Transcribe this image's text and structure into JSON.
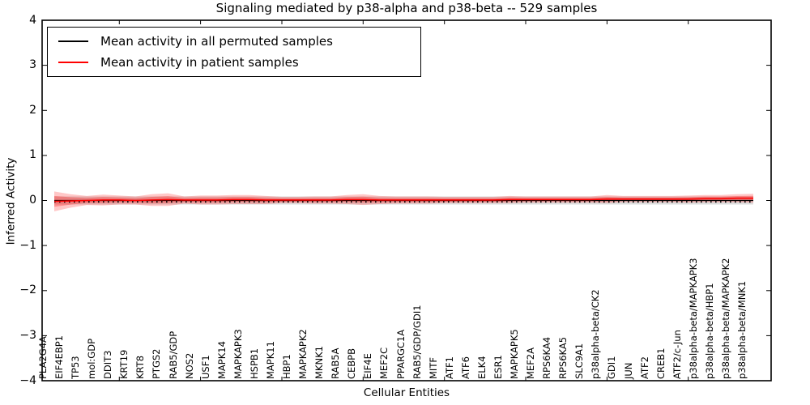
{
  "header": {
    "title": "Signaling mediated by p38-alpha and p38-beta -- 529 samples"
  },
  "legend": {
    "items": [
      {
        "label": "Mean activity in all permuted samples",
        "color": "#000000"
      },
      {
        "label": "Mean activity in patient samples",
        "color": "#ff0000"
      }
    ]
  },
  "axes": {
    "xlabel": "Cellular Entities",
    "ylabel": "Inferred Activity"
  },
  "chart_data": {
    "type": "line",
    "title": "Signaling mediated by p38-alpha and p38-beta -- 529 samples",
    "xlabel": "Cellular Entities",
    "ylabel": "Inferred Activity",
    "ylim": [
      -4,
      4
    ],
    "yticks": [
      -4,
      -3,
      -2,
      -1,
      0,
      1,
      2,
      3,
      4
    ],
    "grid": false,
    "legend_position": "upper left",
    "background": "#ffffff",
    "categories": [
      "PLA2G4A",
      "EIF4EBP1",
      "TP53",
      "mol:GDP",
      "DDIT3",
      "KRT19",
      "KRT8",
      "PTGS2",
      "RAB5/GDP",
      "NOS2",
      "USF1",
      "MAPK14",
      "MAPKAPK3",
      "HSPB1",
      "MAPK11",
      "HBP1",
      "MAPKAPK2",
      "MKNK1",
      "RAB5A",
      "CEBPB",
      "EIF4E",
      "MEF2C",
      "PPARGC1A",
      "RAB5/GDP/GDI1",
      "MITF",
      "ATF1",
      "ATF6",
      "ELK4",
      "ESR1",
      "MAPKAPK5",
      "MEF2A",
      "RPS6KA4",
      "RPS6KA5",
      "SLC9A1",
      "p38alpha-beta/CK2",
      "GDI1",
      "JUN",
      "ATF2",
      "CREB1",
      "ATF2/c-Jun",
      "p38alpha-beta/MAPKAPK3",
      "p38alpha-beta/HBP1",
      "p38alpha-beta/MAPKAPK2",
      "p38alpha-beta/MNK1"
    ],
    "series": [
      {
        "name": "Mean activity in all permuted samples",
        "color": "#000000",
        "style": "solid",
        "values": [
          0,
          0,
          0,
          0,
          0,
          0,
          0,
          0,
          0,
          0,
          0,
          0,
          0,
          0,
          0,
          0,
          0,
          0,
          0,
          0,
          0,
          0,
          0,
          0,
          0,
          0,
          0,
          0,
          0,
          0,
          0,
          0,
          0,
          0,
          0,
          0,
          0,
          0,
          0,
          0,
          0,
          0,
          0,
          0
        ],
        "band_halfwidth": [
          0.09,
          0.09,
          0.09,
          0.09,
          0.09,
          0.09,
          0.09,
          0.09,
          0.09,
          0.09,
          0.09,
          0.09,
          0.09,
          0.09,
          0.09,
          0.09,
          0.09,
          0.09,
          0.09,
          0.09,
          0.09,
          0.09,
          0.09,
          0.09,
          0.09,
          0.09,
          0.09,
          0.09,
          0.09,
          0.09,
          0.09,
          0.09,
          0.09,
          0.09,
          0.09,
          0.09,
          0.09,
          0.09,
          0.09,
          0.09,
          0.09,
          0.09,
          0.09,
          0.09
        ],
        "band_color": "rgba(0,0,0,0.13)"
      },
      {
        "name": "Mean activity in patient samples",
        "color": "#ff0000",
        "style": "solid",
        "values": [
          -0.02,
          -0.01,
          0,
          0.01,
          0.01,
          0,
          0.01,
          0.02,
          0.01,
          0.01,
          0.01,
          0.02,
          0.02,
          0.01,
          0.01,
          0.01,
          0.01,
          0.01,
          0.02,
          0.02,
          0.01,
          0.01,
          0.01,
          0.01,
          0.01,
          0.01,
          0.01,
          0.01,
          0.02,
          0.02,
          0.02,
          0.02,
          0.02,
          0.02,
          0.03,
          0.03,
          0.03,
          0.03,
          0.03,
          0.03,
          0.04,
          0.04,
          0.05,
          0.05
        ],
        "band_halfwidth": [
          0.22,
          0.15,
          0.1,
          0.12,
          0.1,
          0.09,
          0.13,
          0.14,
          0.08,
          0.1,
          0.1,
          0.1,
          0.1,
          0.09,
          0.07,
          0.07,
          0.08,
          0.08,
          0.1,
          0.12,
          0.09,
          0.08,
          0.08,
          0.08,
          0.07,
          0.07,
          0.07,
          0.07,
          0.08,
          0.07,
          0.07,
          0.07,
          0.07,
          0.07,
          0.09,
          0.07,
          0.07,
          0.07,
          0.07,
          0.08,
          0.08,
          0.08,
          0.09,
          0.1
        ],
        "band_color": "rgba(255,0,0,0.22)"
      }
    ],
    "dotted_reference_line": {
      "color": "#000000",
      "style": "dotted",
      "approx_value": -0.03
    }
  }
}
